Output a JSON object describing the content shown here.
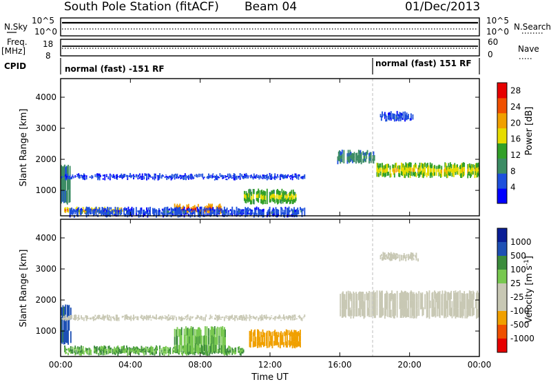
{
  "header": {
    "station": "South Pole Station (fitACF)",
    "beam": "Beam 04",
    "date": "01/Dec/2013"
  },
  "strip_panels": {
    "nsky_label": "N.Sky",
    "nsky_ticks": [
      "10^5",
      "10^0"
    ],
    "nsearch_label": "N.Search",
    "nsearch_ticks": [
      "10^5",
      "10^0"
    ],
    "freq_label": [
      "Freq.",
      "[MHz]"
    ],
    "freq_ticks": [
      "18",
      "8"
    ],
    "nave_label": "Nave",
    "nave_ticks": [
      "60",
      "0"
    ],
    "cpid_label": "CPID",
    "cpid_segments": [
      "normal (fast) -151 RF",
      "normal (fast) 151 RF"
    ]
  },
  "colors": {
    "power": [
      "#0000ff",
      "#1e50dc",
      "#3c8c64",
      "#32a028",
      "#e6dc00",
      "#f0a000",
      "#f05000",
      "#e60000"
    ],
    "velocity": [
      "#e60000",
      "#f05000",
      "#f0a000",
      "#c8c8b4",
      "#c8c8b4",
      "#78c850",
      "#3c8c3c",
      "#1e50b4",
      "#0a1e96"
    ]
  },
  "chart_data": [
    {
      "type": "heatmap",
      "title": "",
      "xlabel": "",
      "ylabel": "Slant Range [km]",
      "x_ticks": [
        "00:00",
        "04:00",
        "08:00",
        "12:00",
        "16:00",
        "20:00",
        "00:00"
      ],
      "xlim_hours": [
        0,
        24
      ],
      "y_ticks": [
        1000,
        2000,
        3000,
        4000
      ],
      "ylim": [
        180,
        4600
      ],
      "colorbar_label": "Power [dB]",
      "colorbar_ticks": [
        4,
        8,
        12,
        16,
        20,
        24,
        28
      ],
      "colorbar_range": [
        0,
        30
      ],
      "grid": false,
      "features": [
        {
          "from": 0.0,
          "to": 0.5,
          "r1": 600,
          "r2": 1800,
          "value": 10
        },
        {
          "from": 0.2,
          "to": 3.5,
          "r1": 280,
          "r2": 420,
          "value": 22
        },
        {
          "from": 6.5,
          "to": 9.2,
          "r1": 260,
          "r2": 520,
          "value": 26
        },
        {
          "from": 0.0,
          "to": 14.0,
          "r1": 1380,
          "r2": 1500,
          "value": 5
        },
        {
          "from": 10.5,
          "to": 13.5,
          "r1": 600,
          "r2": 1000,
          "value": 16
        },
        {
          "from": 15.8,
          "to": 18.0,
          "r1": 1900,
          "r2": 2250,
          "value": 10
        },
        {
          "from": 18.0,
          "to": 24.0,
          "r1": 1450,
          "r2": 1850,
          "value": 18
        },
        {
          "from": 18.3,
          "to": 20.2,
          "r1": 3250,
          "r2": 3500,
          "value": 6
        },
        {
          "from": 0.5,
          "to": 14.0,
          "r1": 180,
          "r2": 420,
          "value": 6
        }
      ]
    },
    {
      "type": "heatmap",
      "title": "",
      "xlabel": "Time UT",
      "ylabel": "Slant Range [km]",
      "x_ticks": [
        "00:00",
        "04:00",
        "08:00",
        "12:00",
        "16:00",
        "20:00",
        "00:00"
      ],
      "xlim_hours": [
        0,
        24
      ],
      "y_ticks": [
        1000,
        2000,
        3000,
        4000
      ],
      "ylim": [
        180,
        4600
      ],
      "colorbar_label": "Velocity [m s^-1]",
      "colorbar_ticks": [
        1000,
        500,
        100,
        25,
        -25,
        -100,
        -500,
        -1000
      ],
      "grid": false,
      "features": [
        {
          "from": 0.0,
          "to": 0.6,
          "r1": 600,
          "r2": 1800,
          "value": 600
        },
        {
          "from": 0.2,
          "to": 10.5,
          "r1": 260,
          "r2": 480,
          "value": 100
        },
        {
          "from": 6.5,
          "to": 9.5,
          "r1": 300,
          "r2": 1100,
          "value": 80
        },
        {
          "from": 0.0,
          "to": 14.0,
          "r1": 1380,
          "r2": 1480,
          "value": 0
        },
        {
          "from": 10.8,
          "to": 13.8,
          "r1": 500,
          "r2": 1000,
          "value": -300
        },
        {
          "from": 16.0,
          "to": 24.0,
          "r1": 1450,
          "r2": 2250,
          "value": 0
        },
        {
          "from": 18.3,
          "to": 20.5,
          "r1": 3300,
          "r2": 3500,
          "value": 0
        }
      ]
    }
  ]
}
